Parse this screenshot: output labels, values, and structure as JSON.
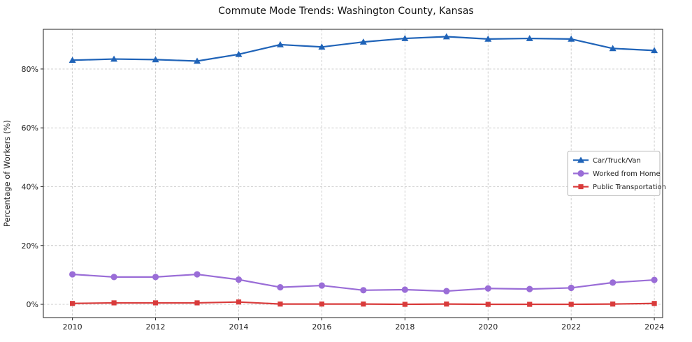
{
  "chart_data": {
    "type": "line",
    "title": "Commute Mode Trends: Washington County, Kansas",
    "xlabel": "",
    "ylabel": "Percentage of Workers (%)",
    "x": [
      2010,
      2011,
      2012,
      2013,
      2014,
      2015,
      2016,
      2017,
      2018,
      2019,
      2020,
      2021,
      2022,
      2023,
      2024
    ],
    "x_ticks": [
      2010,
      2012,
      2014,
      2016,
      2018,
      2020,
      2022,
      2024
    ],
    "y_ticks": [
      0,
      20,
      40,
      60,
      80
    ],
    "y_tick_suffix": "%",
    "xlim": [
      2009.3,
      2024.2
    ],
    "ylim": [
      -4.5,
      93.5
    ],
    "grid": true,
    "legend_position": "center right",
    "series": [
      {
        "name": "Car/Truck/Van",
        "color": "#1f63b8",
        "marker": "triangle",
        "values": [
          83.0,
          83.4,
          83.2,
          82.7,
          85.0,
          88.3,
          87.5,
          89.2,
          90.4,
          91.0,
          90.2,
          90.4,
          90.2,
          87.0,
          86.3
        ]
      },
      {
        "name": "Worked from Home",
        "color": "#9a6dd7",
        "marker": "circle",
        "values": [
          10.2,
          9.3,
          9.3,
          10.2,
          8.4,
          5.8,
          6.4,
          4.8,
          5.0,
          4.5,
          5.4,
          5.2,
          5.6,
          7.4,
          8.3
        ]
      },
      {
        "name": "Public Transportation",
        "color": "#d93b3b",
        "marker": "square",
        "values": [
          0.3,
          0.5,
          0.5,
          0.5,
          0.8,
          0.1,
          0.1,
          0.1,
          0.0,
          0.1,
          0.0,
          0.0,
          0.0,
          0.1,
          0.3
        ]
      }
    ],
    "style": {
      "grid_color": "#c9c9c9",
      "axis_color": "#222222",
      "tick_label_color": "#222222",
      "legend_border_color": "#b7b7b7",
      "background": "#ffffff"
    }
  }
}
